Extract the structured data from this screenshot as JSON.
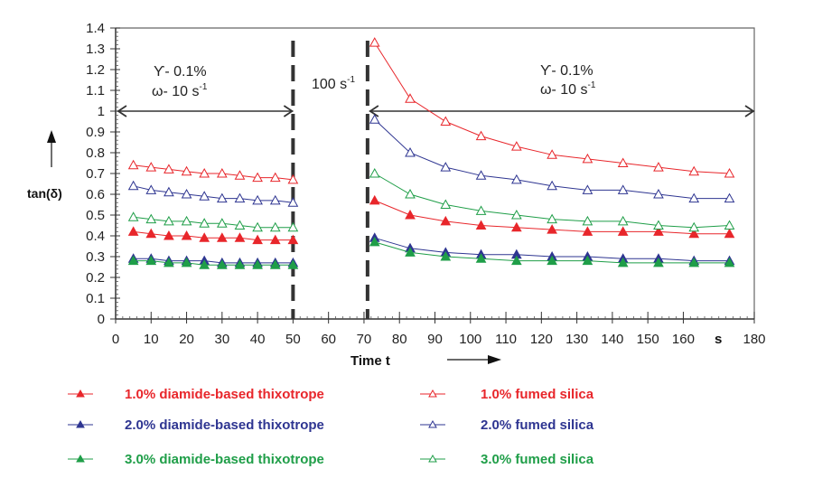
{
  "chart_data": {
    "type": "line",
    "title": "",
    "xlabel": "Time t",
    "x_unit_label": "s",
    "ylabel": "tan(δ)",
    "xlim": [
      0,
      180
    ],
    "ylim": [
      0,
      1.4
    ],
    "x_ticks": [
      "0",
      "10",
      "20",
      "30",
      "40",
      "50",
      "60",
      "70",
      "80",
      "90",
      "100",
      "110",
      "120",
      "130",
      "140",
      "150",
      "160",
      "180"
    ],
    "y_ticks": [
      "0",
      "0.1",
      "0.2",
      "0.3",
      "0.4",
      "0.5",
      "0.6",
      "0.7",
      "0.8",
      "0.9",
      "1",
      "1.1",
      "1.2",
      "1.3",
      "1.4"
    ],
    "grid": false,
    "legend_placement": "bottom",
    "annotations": {
      "left_strain": "ϒ- 0.1%",
      "left_freq": "ω- 10 s",
      "left_freq_sup": "-1",
      "shear": "100 s",
      "shear_sup": "-1",
      "right_strain": "ϒ- 0.1%",
      "right_freq": "ω- 10 s",
      "right_freq_sup": "-1"
    },
    "phase_boundaries": [
      50,
      71
    ],
    "x_left": [
      5,
      10,
      15,
      20,
      25,
      30,
      35,
      40,
      45,
      50
    ],
    "x_right": [
      73,
      83,
      93,
      103,
      113,
      123,
      133,
      143,
      153,
      163,
      173
    ],
    "series": [
      {
        "name": "1.0% diamide-based thixotrope",
        "color": "#e8262b",
        "marker": "filled-triangle",
        "left": [
          0.42,
          0.41,
          0.4,
          0.4,
          0.39,
          0.39,
          0.39,
          0.38,
          0.38,
          0.38
        ],
        "right": [
          0.57,
          0.5,
          0.47,
          0.45,
          0.44,
          0.43,
          0.42,
          0.42,
          0.42,
          0.41,
          0.41
        ]
      },
      {
        "name": "2.0% diamide-based thixotrope",
        "color": "#2e3591",
        "marker": "filled-triangle",
        "left": [
          0.29,
          0.29,
          0.28,
          0.28,
          0.28,
          0.27,
          0.27,
          0.27,
          0.27,
          0.27
        ],
        "right": [
          0.39,
          0.34,
          0.32,
          0.31,
          0.31,
          0.3,
          0.3,
          0.29,
          0.29,
          0.28,
          0.28
        ]
      },
      {
        "name": "3.0% diamide-based thixotrope",
        "color": "#1f9e48",
        "marker": "filled-triangle",
        "left": [
          0.28,
          0.28,
          0.27,
          0.27,
          0.26,
          0.26,
          0.26,
          0.26,
          0.26,
          0.26
        ],
        "right": [
          0.37,
          0.32,
          0.3,
          0.29,
          0.28,
          0.28,
          0.28,
          0.27,
          0.27,
          0.27,
          0.27
        ]
      },
      {
        "name": "1.0% fumed silica",
        "color": "#e8262b",
        "marker": "open-triangle",
        "left": [
          0.74,
          0.73,
          0.72,
          0.71,
          0.7,
          0.7,
          0.69,
          0.68,
          0.68,
          0.67
        ],
        "right": [
          1.33,
          1.06,
          0.95,
          0.88,
          0.83,
          0.79,
          0.77,
          0.75,
          0.73,
          0.71,
          0.7
        ]
      },
      {
        "name": "2.0% fumed silica",
        "color": "#2e3591",
        "marker": "open-triangle",
        "left": [
          0.64,
          0.62,
          0.61,
          0.6,
          0.59,
          0.58,
          0.58,
          0.57,
          0.57,
          0.56
        ],
        "right": [
          0.96,
          0.8,
          0.73,
          0.69,
          0.67,
          0.64,
          0.62,
          0.62,
          0.6,
          0.58,
          0.58
        ]
      },
      {
        "name": "3.0% fumed silica",
        "color": "#1f9e48",
        "marker": "open-triangle",
        "left": [
          0.49,
          0.48,
          0.47,
          0.47,
          0.46,
          0.46,
          0.45,
          0.44,
          0.44,
          0.44
        ],
        "right": [
          0.7,
          0.6,
          0.55,
          0.52,
          0.5,
          0.48,
          0.47,
          0.47,
          0.45,
          0.44,
          0.45
        ]
      }
    ]
  }
}
